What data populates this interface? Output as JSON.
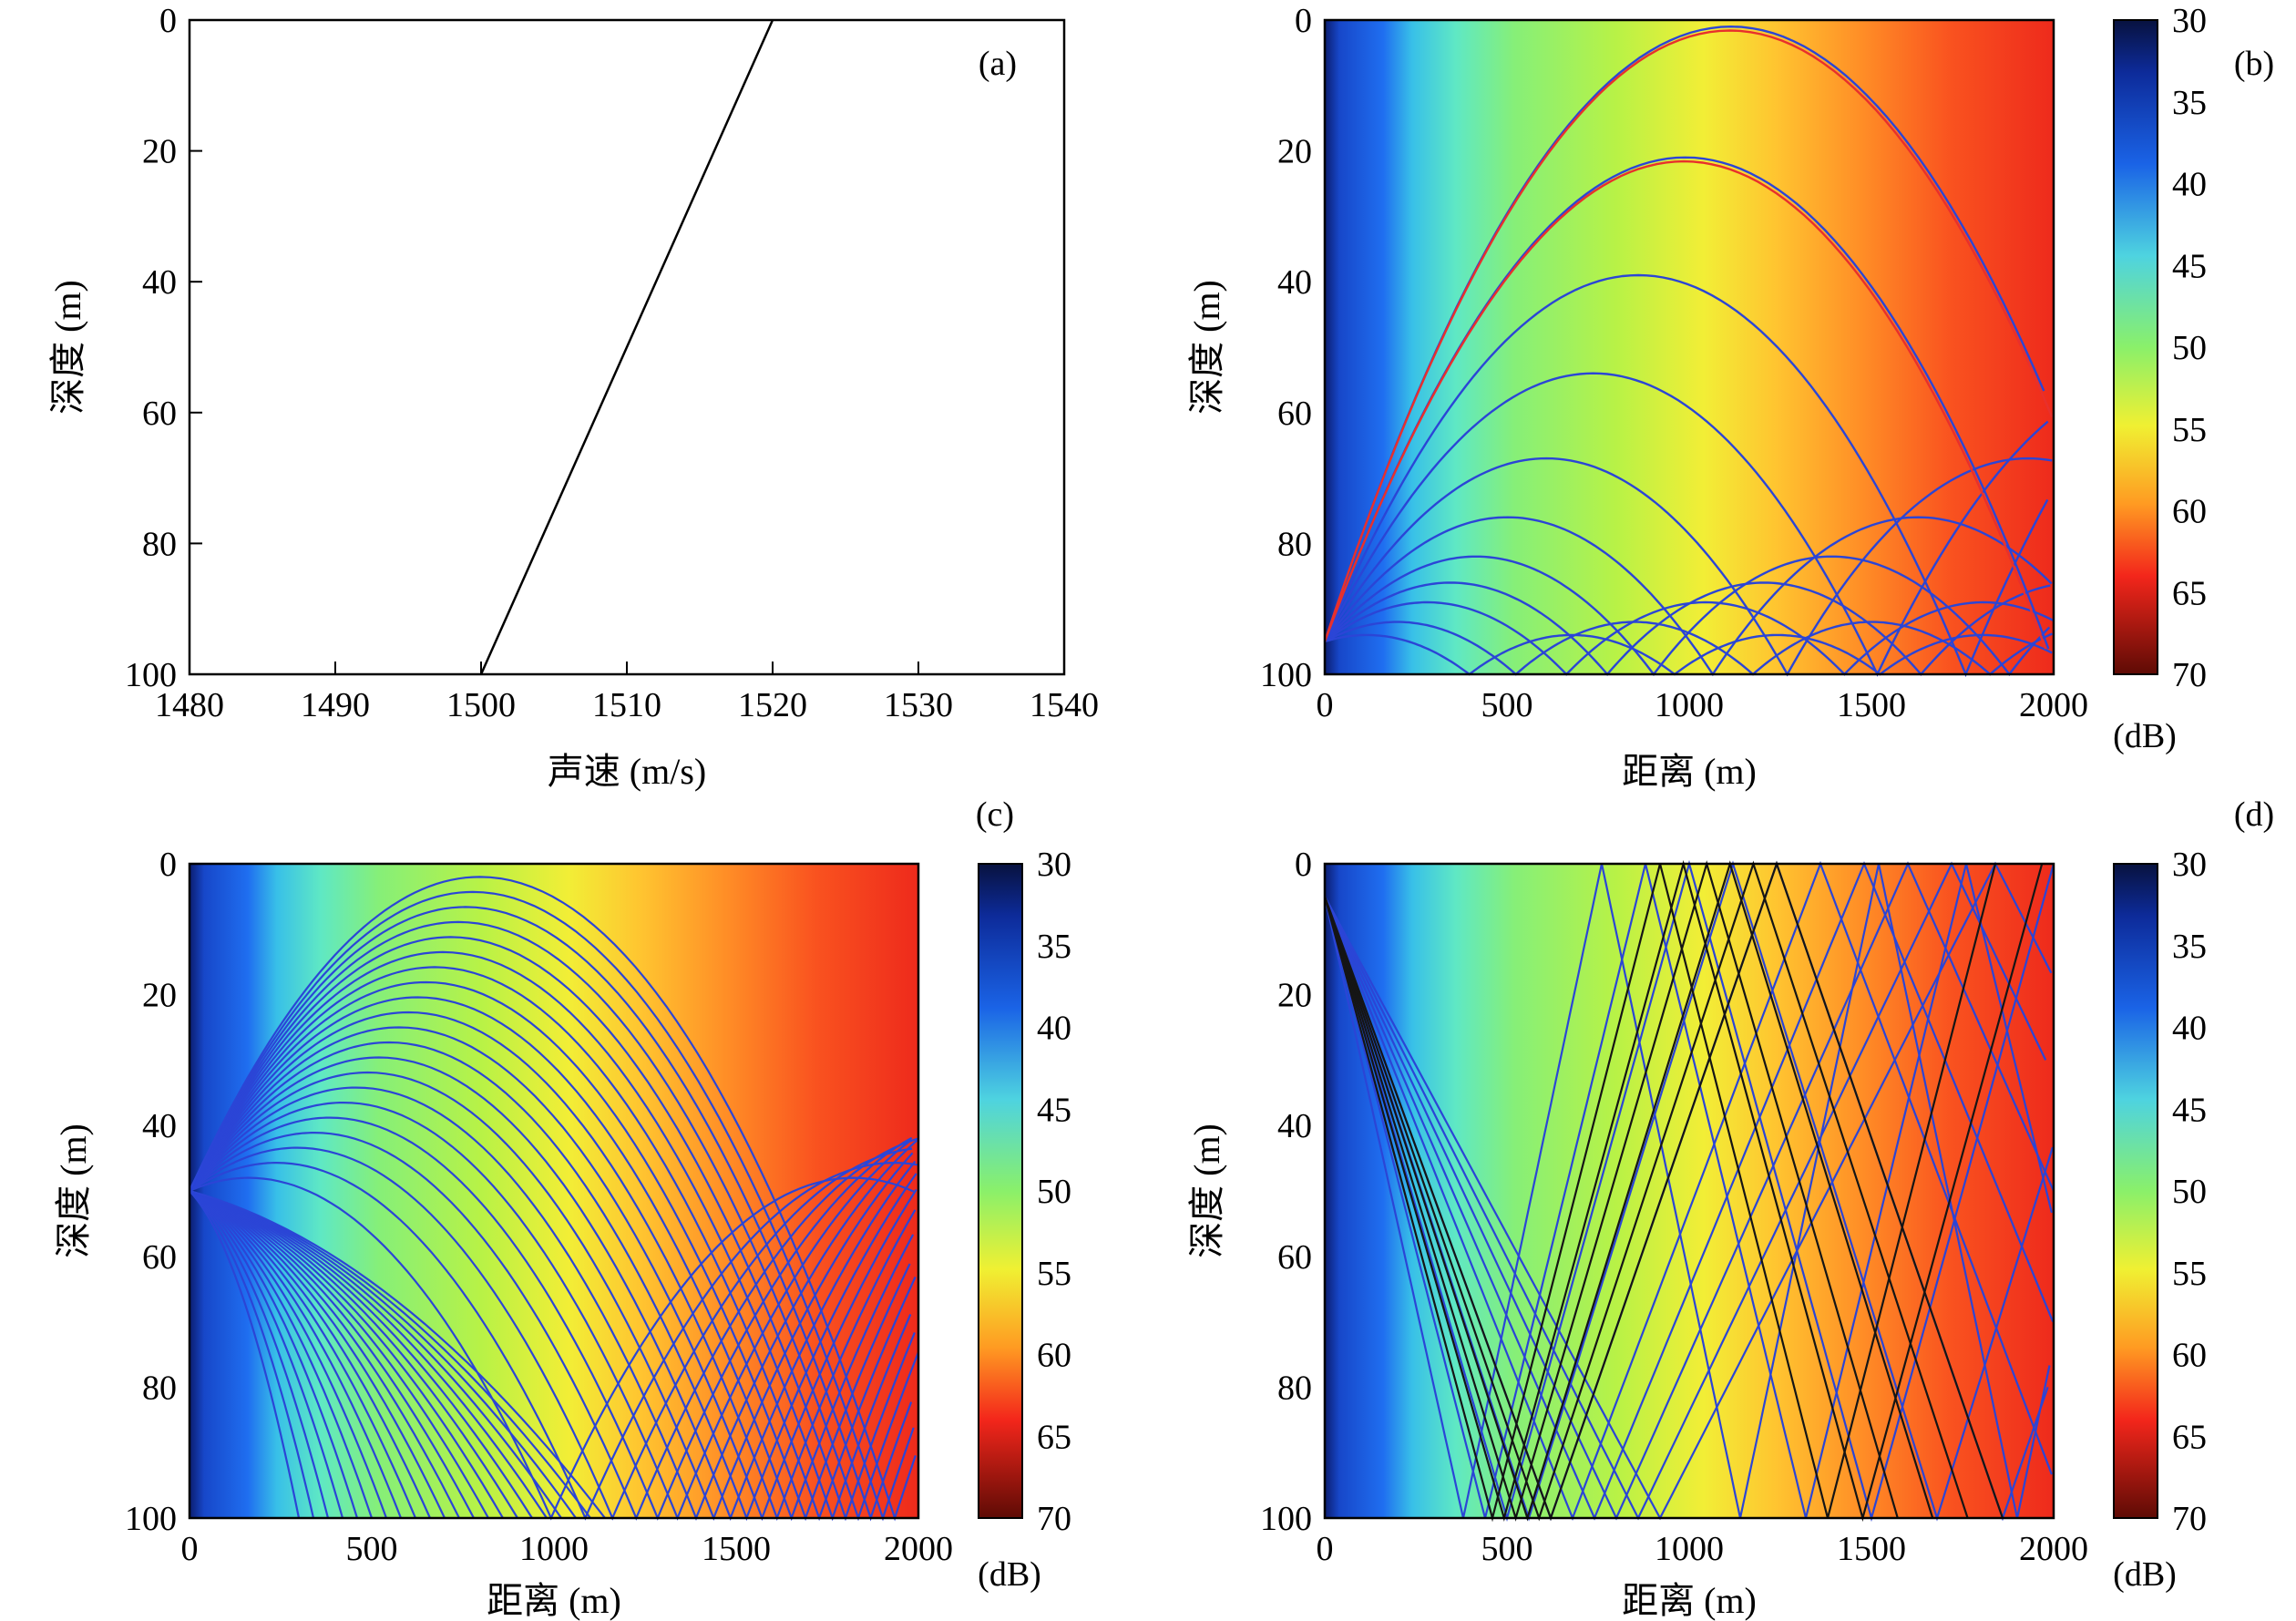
{
  "chart_data": [
    {
      "panel": "a",
      "type": "line",
      "tag": "(a)",
      "xlabel": "声速 (m/s)",
      "ylabel": "深度 (m)",
      "xlim": [
        1480,
        1540
      ],
      "ylim": [
        0,
        100
      ],
      "y_inverted": true,
      "xticks": [
        "1480",
        "1490",
        "1500",
        "1510",
        "1520",
        "1530",
        "1540"
      ],
      "yticks": [
        "0",
        "20",
        "40",
        "60",
        "80",
        "100"
      ],
      "series": [
        {
          "x": [
            1520,
            1500
          ],
          "y": [
            0,
            100
          ]
        }
      ]
    },
    {
      "panel": "b",
      "type": "heatmap",
      "tag": "(b)",
      "xlabel": "距离 (m)",
      "ylabel": "深度 (m)",
      "xlim": [
        0,
        2000
      ],
      "ylim": [
        0,
        100
      ],
      "y_inverted": true,
      "xticks": [
        "0",
        "500",
        "1000",
        "1500",
        "2000"
      ],
      "yticks": [
        "0",
        "20",
        "40",
        "60",
        "80",
        "100"
      ],
      "colorbar": {
        "ticks": [
          "30",
          "35",
          "40",
          "45",
          "50",
          "55",
          "60",
          "65",
          "70"
        ],
        "unit": "(dB)",
        "range": [
          30,
          70
        ]
      },
      "source_depth": 95,
      "ray_color": "#2b45d6",
      "highlight_color": "#e8302c",
      "ray_turning_depths": [
        1,
        21,
        39,
        54,
        67,
        76,
        82,
        86,
        89,
        92,
        94
      ],
      "highlight_turning_depths": [
        1,
        21
      ]
    },
    {
      "panel": "c",
      "type": "heatmap",
      "tag": "(c)",
      "xlabel": "距离 (m)",
      "ylabel": "深度 (m)",
      "xlim": [
        0,
        2000
      ],
      "ylim": [
        0,
        100
      ],
      "y_inverted": true,
      "xticks": [
        "0",
        "500",
        "1000",
        "1500",
        "2000"
      ],
      "yticks": [
        "0",
        "20",
        "40",
        "60",
        "80",
        "100"
      ],
      "colorbar": {
        "ticks": [
          "30",
          "35",
          "40",
          "45",
          "50",
          "55",
          "60",
          "65",
          "70"
        ],
        "unit": "(dB)",
        "range": [
          30,
          70
        ]
      },
      "source_depth": 50,
      "ray_color": "#2b45d6"
    },
    {
      "panel": "d",
      "type": "heatmap",
      "tag": "(d)",
      "xlabel": "距离 (m)",
      "ylabel": "深度 (m)",
      "xlim": [
        0,
        2000
      ],
      "ylim": [
        0,
        100
      ],
      "y_inverted": true,
      "xticks": [
        "0",
        "500",
        "1000",
        "1500",
        "2000"
      ],
      "yticks": [
        "0",
        "20",
        "40",
        "60",
        "80",
        "100"
      ],
      "colorbar": {
        "ticks": [
          "30",
          "35",
          "40",
          "45",
          "50",
          "55",
          "60",
          "65",
          "70"
        ],
        "unit": "(dB)",
        "range": [
          30,
          70
        ]
      },
      "source_depth": 5,
      "ray_color": "#2b45d6",
      "bottom_bounce_color": "#151515"
    }
  ]
}
